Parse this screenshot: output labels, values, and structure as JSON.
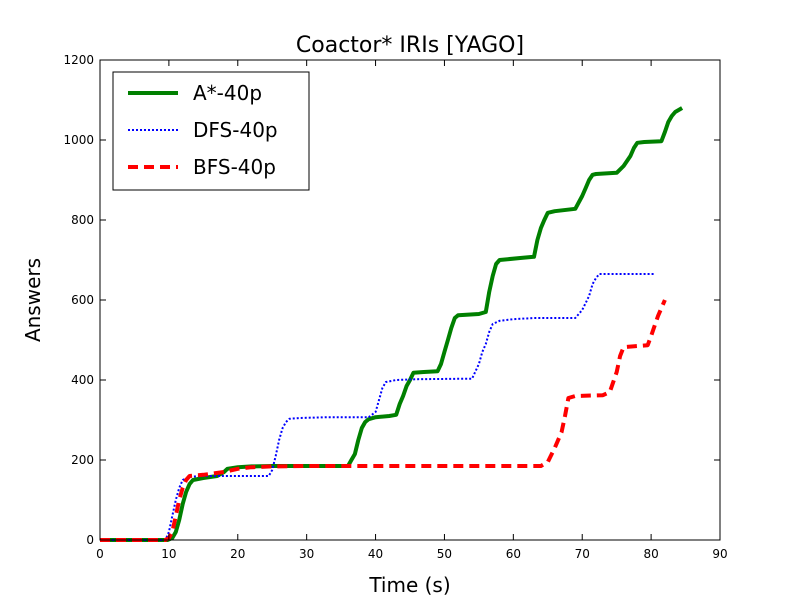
{
  "chart_data": {
    "type": "line",
    "title": "Coactor* IRIs [YAGO]",
    "xlabel": "Time (s)",
    "ylabel": "Answers",
    "xlim": [
      0,
      90
    ],
    "ylim": [
      0,
      1200
    ],
    "xticks": [
      0,
      10,
      20,
      30,
      40,
      50,
      60,
      70,
      80,
      90
    ],
    "yticks": [
      0,
      200,
      400,
      600,
      800,
      1000,
      1200
    ],
    "xtick_labels": [
      "0",
      "10",
      "20",
      "30",
      "40",
      "50",
      "60",
      "70",
      "80",
      "90"
    ],
    "ytick_labels": [
      "0",
      "200",
      "400",
      "600",
      "800",
      "1000",
      "1200"
    ],
    "grid": false,
    "legend_position": "top-left",
    "series": [
      {
        "name": "A*-40p",
        "color": "#008000",
        "style": "solid",
        "points": [
          [
            0,
            0
          ],
          [
            9.8,
            0
          ],
          [
            10.5,
            5
          ],
          [
            11,
            20
          ],
          [
            11.5,
            50
          ],
          [
            12,
            90
          ],
          [
            12.5,
            120
          ],
          [
            13,
            140
          ],
          [
            13.5,
            150
          ],
          [
            15,
            155
          ],
          [
            17,
            160
          ],
          [
            18,
            170
          ],
          [
            18.5,
            178
          ],
          [
            20,
            182
          ],
          [
            22,
            184
          ],
          [
            25,
            185
          ],
          [
            30,
            185
          ],
          [
            36,
            185
          ],
          [
            36.5,
            200
          ],
          [
            37,
            215
          ],
          [
            37.5,
            250
          ],
          [
            38,
            280
          ],
          [
            38.5,
            295
          ],
          [
            39,
            302
          ],
          [
            40,
            307
          ],
          [
            42,
            310
          ],
          [
            43,
            313
          ],
          [
            43.5,
            340
          ],
          [
            44,
            360
          ],
          [
            44.5,
            385
          ],
          [
            45,
            400
          ],
          [
            45.5,
            418
          ],
          [
            47,
            420
          ],
          [
            49,
            422
          ],
          [
            49.5,
            440
          ],
          [
            50,
            470
          ],
          [
            50.5,
            500
          ],
          [
            51,
            530
          ],
          [
            51.5,
            555
          ],
          [
            52,
            562
          ],
          [
            55,
            565
          ],
          [
            56,
            570
          ],
          [
            56.5,
            620
          ],
          [
            57,
            660
          ],
          [
            57.5,
            690
          ],
          [
            58,
            700
          ],
          [
            61,
            705
          ],
          [
            63,
            708
          ],
          [
            63.5,
            750
          ],
          [
            64,
            780
          ],
          [
            64.5,
            800
          ],
          [
            65,
            818
          ],
          [
            66,
            822
          ],
          [
            69,
            828
          ],
          [
            70,
            860
          ],
          [
            70.5,
            880
          ],
          [
            71,
            900
          ],
          [
            71.5,
            913
          ],
          [
            72,
            915
          ],
          [
            75,
            918
          ],
          [
            76,
            935
          ],
          [
            77,
            960
          ],
          [
            77.5,
            980
          ],
          [
            78,
            993
          ],
          [
            79,
            995
          ],
          [
            81.5,
            997
          ],
          [
            82,
            1020
          ],
          [
            82.5,
            1045
          ],
          [
            83,
            1060
          ],
          [
            83.5,
            1070
          ],
          [
            84.5,
            1080
          ]
        ]
      },
      {
        "name": "DFS-40p",
        "color": "#0000ff",
        "style": "dotted",
        "points": [
          [
            0,
            0
          ],
          [
            9.5,
            0
          ],
          [
            10,
            20
          ],
          [
            10.5,
            60
          ],
          [
            11,
            100
          ],
          [
            11.5,
            130
          ],
          [
            12,
            150
          ],
          [
            13,
            158
          ],
          [
            15,
            160
          ],
          [
            20,
            160
          ],
          [
            24.5,
            160
          ],
          [
            25,
            175
          ],
          [
            25.5,
            210
          ],
          [
            26,
            250
          ],
          [
            26.5,
            280
          ],
          [
            27,
            295
          ],
          [
            27.5,
            303
          ],
          [
            29,
            305
          ],
          [
            33,
            307
          ],
          [
            39,
            307
          ],
          [
            40,
            320
          ],
          [
            40.5,
            350
          ],
          [
            41,
            380
          ],
          [
            41.5,
            395
          ],
          [
            43,
            400
          ],
          [
            46,
            402
          ],
          [
            52,
            403
          ],
          [
            54,
            403
          ],
          [
            55,
            440
          ],
          [
            55.5,
            470
          ],
          [
            56,
            490
          ],
          [
            56.5,
            520
          ],
          [
            57,
            540
          ],
          [
            58,
            548
          ],
          [
            60,
            552
          ],
          [
            63,
            555
          ],
          [
            69,
            555
          ],
          [
            70,
            575
          ],
          [
            71,
            610
          ],
          [
            71.5,
            640
          ],
          [
            72,
            655
          ],
          [
            72.5,
            665
          ],
          [
            76,
            665
          ],
          [
            80.5,
            665
          ]
        ]
      },
      {
        "name": "BFS-40p",
        "color": "#ff0000",
        "style": "dashed",
        "points": [
          [
            0,
            0
          ],
          [
            9.5,
            0
          ],
          [
            10,
            5
          ],
          [
            10.5,
            20
          ],
          [
            11,
            60
          ],
          [
            11.5,
            100
          ],
          [
            12,
            130
          ],
          [
            12.5,
            150
          ],
          [
            13,
            160
          ],
          [
            15,
            163
          ],
          [
            18,
            170
          ],
          [
            20,
            178
          ],
          [
            22,
            182
          ],
          [
            25,
            184
          ],
          [
            30,
            185
          ],
          [
            40,
            185
          ],
          [
            50,
            185
          ],
          [
            60,
            185
          ],
          [
            64,
            185
          ],
          [
            65,
            195
          ],
          [
            66,
            230
          ],
          [
            67,
            270
          ],
          [
            67.5,
            310
          ],
          [
            68,
            355
          ],
          [
            69,
            360
          ],
          [
            73,
            362
          ],
          [
            74,
            370
          ],
          [
            75,
            420
          ],
          [
            75.5,
            460
          ],
          [
            76,
            482
          ],
          [
            78,
            485
          ],
          [
            79.5,
            487
          ],
          [
            80,
            510
          ],
          [
            81,
            560
          ],
          [
            82,
            600
          ]
        ]
      }
    ]
  }
}
